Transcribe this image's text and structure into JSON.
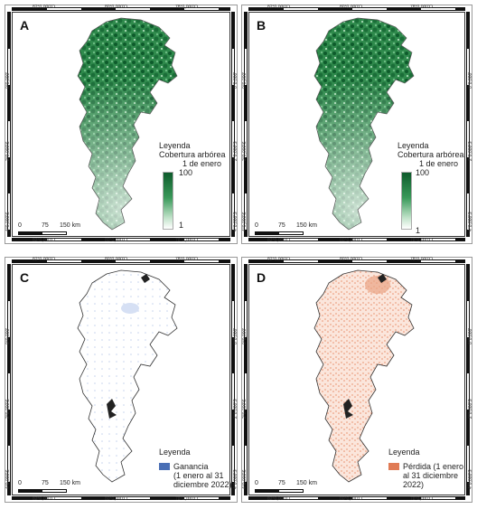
{
  "colors": {
    "forest_dark": "#0d5b2b",
    "forest_mid": "#3a9a5a",
    "forest_light": "#bfe2c8",
    "gain": "#4a6fb5",
    "loss": "#e07b55",
    "outline": "#222222"
  },
  "coords": {
    "lon_82": "82°0,000'O",
    "lon_80": "80°0,000'O",
    "lon_78": "78°0,000'O",
    "lat_0": "0°0,000'",
    "lat_2": "2°0,000'S",
    "lat_4": "4°0,000'S"
  },
  "scale": {
    "s0": "0",
    "s75": "75",
    "s150": "150 km"
  },
  "panels": {
    "a": {
      "letter": "A",
      "legend_title": "Leyenda",
      "legend_subtitle": "Cobertura arbórea",
      "legend_date": "1 de enero",
      "max": "100",
      "min": "1"
    },
    "b": {
      "letter": "B",
      "legend_title": "Leyenda",
      "legend_subtitle": "Cobertura arbórea",
      "legend_date": "1 de enero",
      "max": "100",
      "min": "1"
    },
    "c": {
      "letter": "C",
      "legend_title": "Leyenda",
      "item_line1": "Ganancia",
      "item_line2": "(1 enero al 31",
      "item_line3": "diciembre 2022)"
    },
    "d": {
      "letter": "D",
      "legend_title": "Leyenda",
      "item_line1": "Pérdida (1 enero",
      "item_line2": "al 31 diciembre",
      "item_line3": "2022)"
    }
  }
}
